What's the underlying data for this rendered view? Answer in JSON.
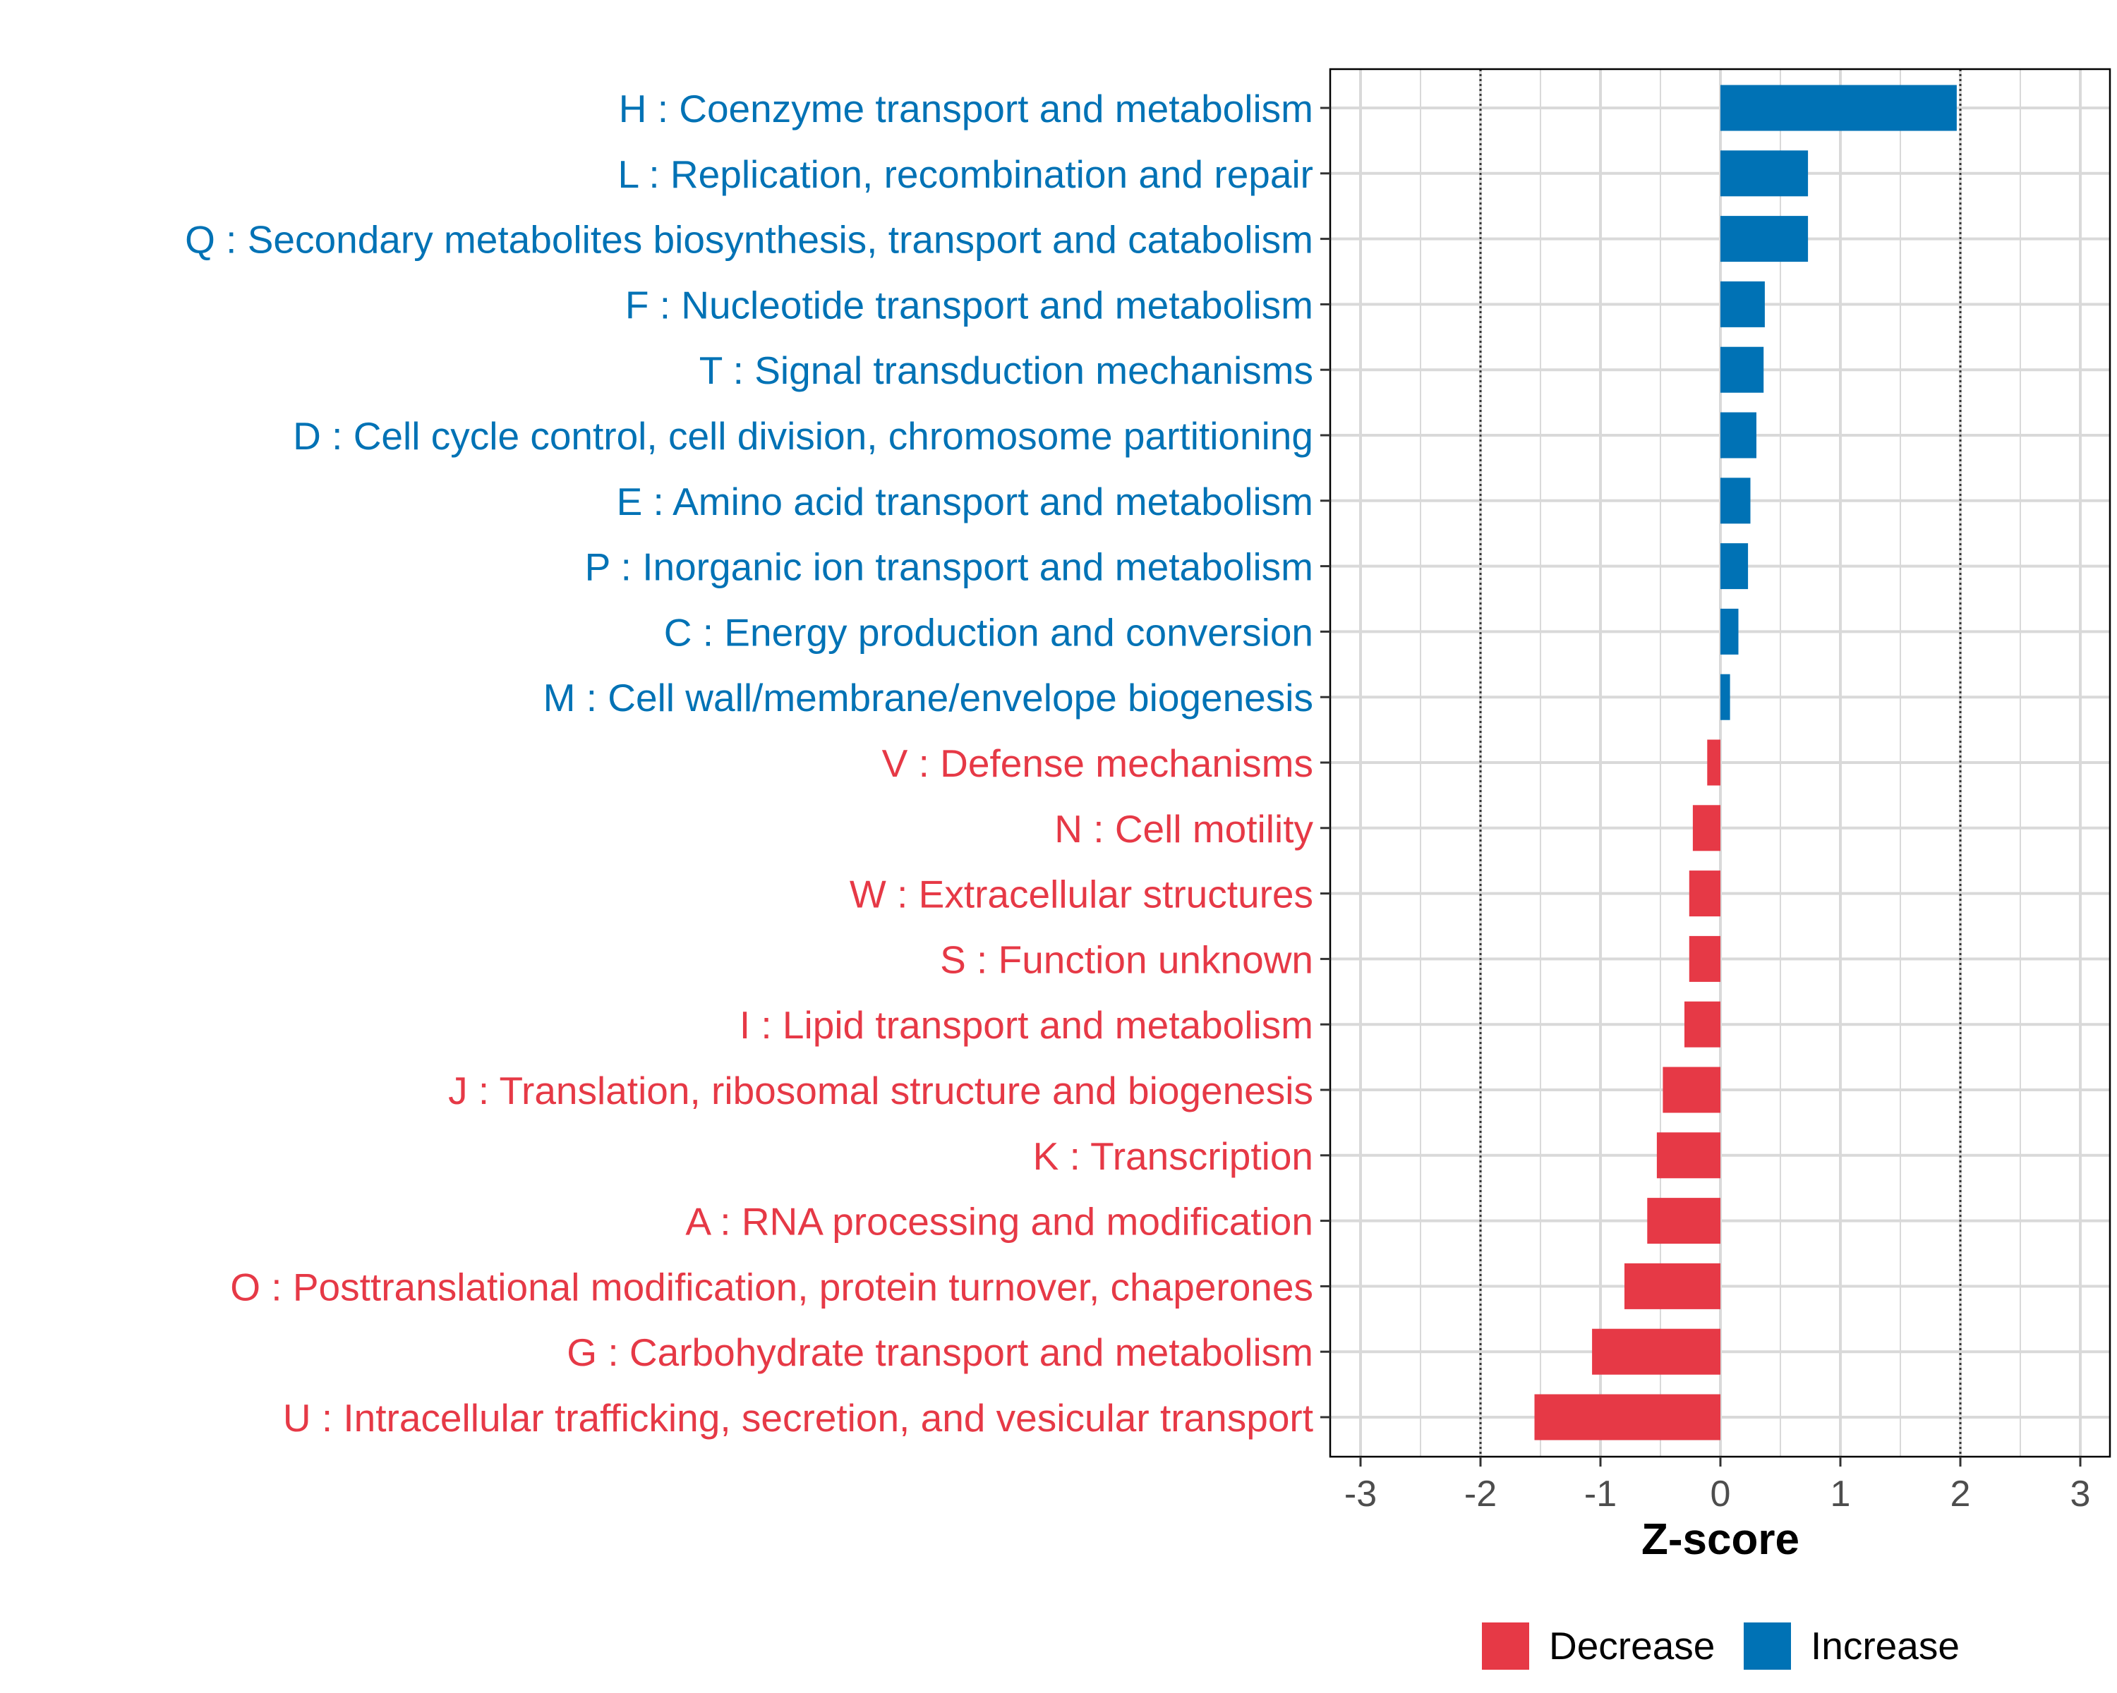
{
  "colors": {
    "increase": "#0072B5",
    "decrease": "#E63946"
  },
  "chart_data": {
    "type": "bar",
    "orientation": "horizontal",
    "xlabel": "Z-score",
    "ylabel": "",
    "xlim": [
      -3.25,
      3.25
    ],
    "xticks": [
      "-3",
      "-2",
      "-1",
      "0",
      "1",
      "2",
      "3"
    ],
    "threshold_lines": [
      -2,
      2
    ],
    "grid": true,
    "legend_position": "bottom",
    "legend": [
      {
        "label": "Decrease",
        "color": "#E63946"
      },
      {
        "label": "Increase",
        "color": "#0072B5"
      }
    ],
    "categories": [
      "H : Coenzyme transport and metabolism",
      "L : Replication, recombination and repair",
      "Q : Secondary metabolites biosynthesis, transport and catabolism",
      "F : Nucleotide transport and metabolism",
      "T : Signal transduction mechanisms",
      "D : Cell cycle control, cell division, chromosome partitioning",
      "E : Amino acid transport and metabolism",
      "P : Inorganic ion transport and metabolism",
      "C : Energy production and conversion",
      "M : Cell wall/membrane/envelope biogenesis",
      "V : Defense mechanisms",
      "N : Cell motility",
      "W : Extracellular structures",
      "S : Function unknown",
      "I : Lipid transport and metabolism",
      "J : Translation, ribosomal structure and biogenesis",
      "K : Transcription",
      "A : RNA processing and modification",
      "O : Posttranslational modification, protein turnover, chaperones",
      "G : Carbohydrate transport and metabolism",
      "U : Intracellular trafficking, secretion, and vesicular transport"
    ],
    "values": [
      1.97,
      0.73,
      0.73,
      0.37,
      0.36,
      0.3,
      0.25,
      0.23,
      0.15,
      0.08,
      -0.11,
      -0.23,
      -0.26,
      -0.26,
      -0.3,
      -0.48,
      -0.53,
      -0.61,
      -0.8,
      -1.07,
      -1.55
    ]
  }
}
